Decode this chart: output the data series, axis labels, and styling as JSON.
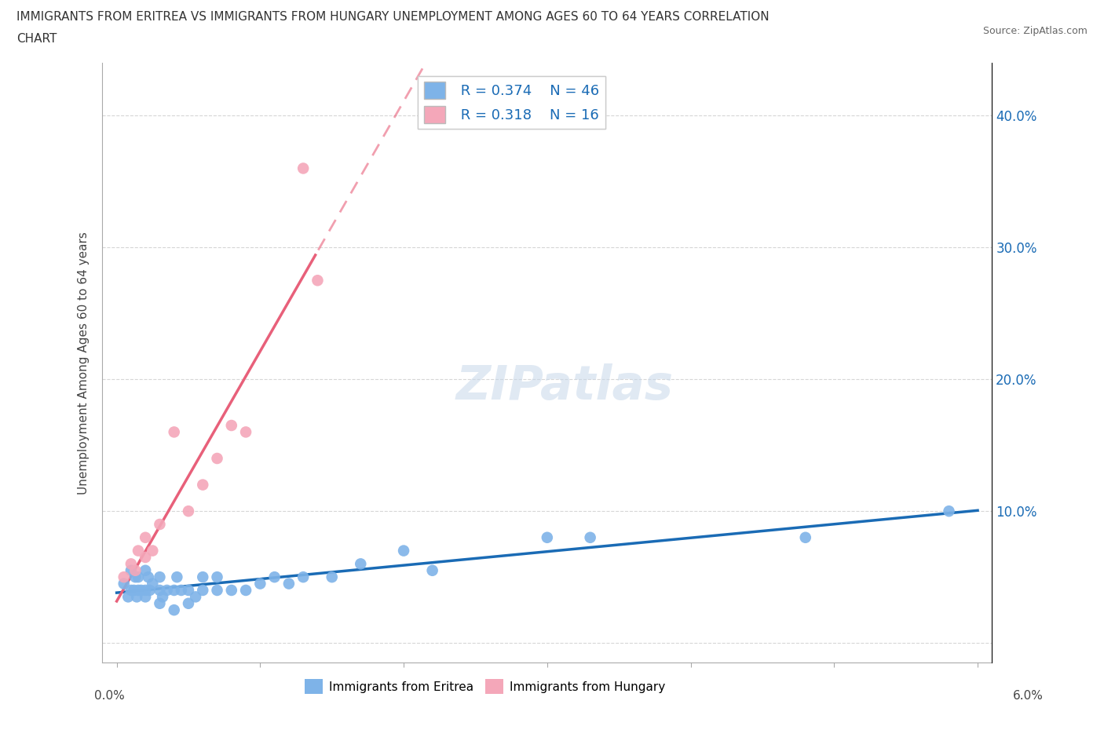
{
  "title_line1": "IMMIGRANTS FROM ERITREA VS IMMIGRANTS FROM HUNGARY UNEMPLOYMENT AMONG AGES 60 TO 64 YEARS CORRELATION",
  "title_line2": "CHART",
  "source": "Source: ZipAtlas.com",
  "ylabel": "Unemployment Among Ages 60 to 64 years",
  "xmin": 0.0,
  "xmax": 0.06,
  "ymin": -0.015,
  "ymax": 0.44,
  "yticks": [
    0.0,
    0.1,
    0.2,
    0.3,
    0.4
  ],
  "ytick_labels": [
    "",
    "10.0%",
    "20.0%",
    "30.0%",
    "40.0%"
  ],
  "legend_r1": "R = 0.374",
  "legend_n1": "N = 46",
  "legend_r2": "R = 0.318",
  "legend_n2": "N = 16",
  "eritrea_color": "#7EB3E8",
  "hungary_color": "#F4A7B9",
  "eritrea_line_color": "#1A6BB5",
  "hungary_line_color": "#E8607A",
  "watermark": "ZIPatlas",
  "eritrea_x": [
    0.0005,
    0.0008,
    0.001,
    0.001,
    0.0012,
    0.0013,
    0.0014,
    0.0015,
    0.0015,
    0.0017,
    0.002,
    0.002,
    0.002,
    0.0022,
    0.0023,
    0.0025,
    0.003,
    0.003,
    0.003,
    0.0032,
    0.0035,
    0.004,
    0.004,
    0.0042,
    0.0045,
    0.005,
    0.005,
    0.0055,
    0.006,
    0.006,
    0.007,
    0.007,
    0.008,
    0.009,
    0.01,
    0.011,
    0.012,
    0.013,
    0.015,
    0.017,
    0.02,
    0.022,
    0.03,
    0.033,
    0.048,
    0.058
  ],
  "eritrea_y": [
    0.045,
    0.035,
    0.04,
    0.055,
    0.04,
    0.05,
    0.035,
    0.04,
    0.05,
    0.04,
    0.04,
    0.055,
    0.035,
    0.05,
    0.04,
    0.045,
    0.04,
    0.03,
    0.05,
    0.035,
    0.04,
    0.04,
    0.025,
    0.05,
    0.04,
    0.04,
    0.03,
    0.035,
    0.04,
    0.05,
    0.04,
    0.05,
    0.04,
    0.04,
    0.045,
    0.05,
    0.045,
    0.05,
    0.05,
    0.06,
    0.07,
    0.055,
    0.08,
    0.08,
    0.08,
    0.1
  ],
  "hungary_x": [
    0.0005,
    0.001,
    0.0013,
    0.0015,
    0.002,
    0.002,
    0.0025,
    0.003,
    0.004,
    0.005,
    0.006,
    0.007,
    0.008,
    0.009,
    0.013,
    0.014
  ],
  "hungary_y": [
    0.05,
    0.06,
    0.055,
    0.07,
    0.065,
    0.08,
    0.07,
    0.09,
    0.16,
    0.1,
    0.12,
    0.14,
    0.165,
    0.16,
    0.36,
    0.275
  ]
}
